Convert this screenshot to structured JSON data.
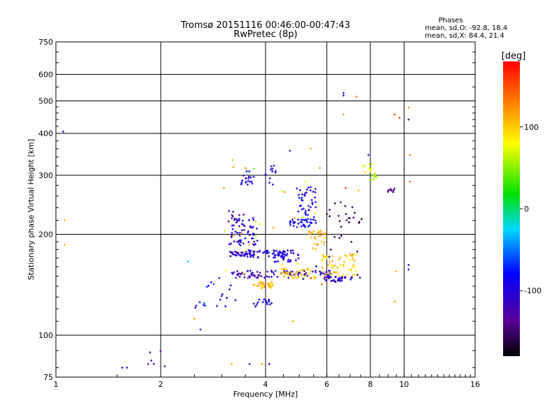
{
  "chart_data": {
    "type": "scatter",
    "title": "Tromsø 20151116 00:46:00-00:47:43",
    "subtitle": "RwPretec (8p)",
    "xlabel": "Frequency [MHz]",
    "ylabel": "Stationary phase Virtual Height [km]",
    "x_scale": "log",
    "y_scale": "log",
    "xlim": [
      1,
      16
    ],
    "ylim": [
      75,
      750
    ],
    "x_ticks": [
      1,
      2,
      4,
      6,
      8,
      10,
      16
    ],
    "x_tick_labels": [
      "1",
      "2",
      "4",
      "6",
      "8",
      "10",
      "16"
    ],
    "y_ticks": [
      75,
      100,
      200,
      300,
      400,
      500,
      600,
      750
    ],
    "y_tick_labels": [
      "75",
      "100",
      "200",
      "300",
      "400",
      "500",
      "600",
      "750"
    ],
    "grid": true,
    "stats": {
      "heading": "Phases",
      "line_o": "mean, sd,O: -92.8, 18.4",
      "line_x": "mean, sd,X:  84.4, 21.4"
    },
    "colorbar": {
      "label": "[deg]",
      "range": [
        -180,
        180
      ],
      "ticks": [
        100,
        0,
        -100
      ],
      "tick_labels": [
        "100",
        "0",
        "-100"
      ]
    },
    "clusters": [
      {
        "f": [
          3.15,
          3.75
        ],
        "h": [
          172,
          178
        ],
        "n": 46,
        "phase": [
          -125,
          -100
        ]
      },
      {
        "f": [
          3.55,
          4.55
        ],
        "h": [
          170,
          180
        ],
        "n": 40,
        "phase": [
          -110,
          -85
        ]
      },
      {
        "f": [
          4.2,
          5.0
        ],
        "h": [
          165,
          180
        ],
        "n": 36,
        "phase": [
          -110,
          -90
        ]
      },
      {
        "f": [
          3.2,
          4.8
        ],
        "h": [
          148,
          156
        ],
        "n": 60,
        "phase": [
          -135,
          -105
        ]
      },
      {
        "f": [
          4.7,
          6.2
        ],
        "h": [
          150,
          156
        ],
        "n": 34,
        "phase": [
          -130,
          -100
        ]
      },
      {
        "f": [
          5.9,
          7.2
        ],
        "h": [
          145,
          150
        ],
        "n": 38,
        "phase": [
          -125,
          -100
        ]
      },
      {
        "f": [
          3.7,
          4.2
        ],
        "h": [
          138,
          145
        ],
        "n": 32,
        "phase": [
          90,
          130
        ]
      },
      {
        "f": [
          4.4,
          5.6
        ],
        "h": [
          148,
          158
        ],
        "n": 38,
        "phase": [
          85,
          125
        ]
      },
      {
        "f": [
          5.8,
          7.3
        ],
        "h": [
          150,
          175
        ],
        "n": 58,
        "phase": [
          75,
          120
        ]
      },
      {
        "f": [
          5.3,
          6.0
        ],
        "h": [
          180,
          205
        ],
        "n": 28,
        "phase": [
          95,
          130
        ]
      },
      {
        "f": [
          3.15,
          3.8
        ],
        "h": [
          185,
          225
        ],
        "n": 55,
        "phase": [
          -115,
          -80
        ]
      },
      {
        "f": [
          4.7,
          5.6
        ],
        "h": [
          210,
          222
        ],
        "n": 36,
        "phase": [
          -100,
          -70
        ]
      },
      {
        "f": [
          4.9,
          5.6
        ],
        "h": [
          225,
          280
        ],
        "n": 40,
        "phase": [
          -110,
          -75
        ]
      },
      {
        "f": [
          3.4,
          3.7
        ],
        "h": [
          280,
          310
        ],
        "n": 20,
        "phase": [
          -110,
          -75
        ]
      },
      {
        "f": [
          4.0,
          4.35
        ],
        "h": [
          280,
          330
        ],
        "n": 12,
        "phase": [
          -120,
          -90
        ]
      },
      {
        "f": [
          3.1,
          3.6
        ],
        "h": [
          190,
          235
        ],
        "n": 14,
        "phase": [
          -150,
          -120
        ]
      },
      {
        "f": [
          3.7,
          4.2
        ],
        "h": [
          120,
          128
        ],
        "n": 16,
        "phase": [
          -110,
          -80
        ]
      },
      {
        "f": [
          6.0,
          7.6
        ],
        "h": [
          210,
          250
        ],
        "n": 20,
        "phase": [
          -170,
          -130
        ]
      },
      {
        "f": [
          7.6,
          8.1
        ],
        "h": [
          305,
          325
        ],
        "n": 12,
        "phase": [
          65,
          95
        ]
      },
      {
        "f": [
          8.0,
          8.4
        ],
        "h": [
          290,
          305
        ],
        "n": 10,
        "phase": [
          40,
          75
        ]
      },
      {
        "f": [
          8.9,
          9.4
        ],
        "h": [
          265,
          275
        ],
        "n": 8,
        "phase": [
          -155,
          -135
        ]
      },
      {
        "f": [
          2.5,
          3.3
        ],
        "h": [
          120,
          150
        ],
        "n": 20,
        "phase": [
          -120,
          -60
        ]
      },
      {
        "f": [
          1.8,
          2.1
        ],
        "h": [
          80,
          92
        ],
        "n": 6,
        "phase": [
          -140,
          -100
        ]
      },
      {
        "f": [
          3.0,
          6.0
        ],
        "h": [
          140,
          360
        ],
        "n": 28,
        "phase": [
          40,
          140
        ]
      },
      {
        "f": [
          5.0,
          7.5
        ],
        "h": [
          140,
          200
        ],
        "n": 14,
        "phase": [
          -180,
          -150
        ]
      }
    ],
    "points": [
      {
        "f": 1.05,
        "h": 405,
        "phase": -120
      },
      {
        "f": 1.06,
        "h": 220,
        "phase": 105
      },
      {
        "f": 1.06,
        "h": 186,
        "phase": 112
      },
      {
        "f": 1.55,
        "h": 80,
        "phase": -110
      },
      {
        "f": 1.6,
        "h": 80,
        "phase": -100
      },
      {
        "f": 2.4,
        "h": 166,
        "phase": -30
      },
      {
        "f": 2.5,
        "h": 112,
        "phase": 115
      },
      {
        "f": 2.6,
        "h": 104,
        "phase": -110
      },
      {
        "f": 3.2,
        "h": 82,
        "phase": 110
      },
      {
        "f": 3.6,
        "h": 82,
        "phase": -120
      },
      {
        "f": 3.9,
        "h": 82,
        "phase": 110
      },
      {
        "f": 4.1,
        "h": 82,
        "phase": -105
      },
      {
        "f": 4.8,
        "h": 110,
        "phase": 115
      },
      {
        "f": 4.7,
        "h": 355,
        "phase": -120
      },
      {
        "f": 5.4,
        "h": 360,
        "phase": 110
      },
      {
        "f": 6.7,
        "h": 528,
        "phase": -110
      },
      {
        "f": 6.7,
        "h": 519,
        "phase": -100
      },
      {
        "f": 7.3,
        "h": 515,
        "phase": 140
      },
      {
        "f": 6.7,
        "h": 455,
        "phase": 120
      },
      {
        "f": 7.9,
        "h": 345,
        "phase": -120
      },
      {
        "f": 9.4,
        "h": 455,
        "phase": 160
      },
      {
        "f": 9.7,
        "h": 445,
        "phase": 150
      },
      {
        "f": 10.3,
        "h": 440,
        "phase": -150
      },
      {
        "f": 10.3,
        "h": 478,
        "phase": 120
      },
      {
        "f": 10.4,
        "h": 345,
        "phase": 130
      },
      {
        "f": 10.4,
        "h": 287,
        "phase": 140
      },
      {
        "f": 10.3,
        "h": 162,
        "phase": -110
      },
      {
        "f": 10.3,
        "h": 157,
        "phase": -110
      },
      {
        "f": 9.5,
        "h": 155,
        "phase": 110
      },
      {
        "f": 9.4,
        "h": 126,
        "phase": 120
      },
      {
        "f": 6.8,
        "h": 275,
        "phase": 160
      },
      {
        "f": 7.4,
        "h": 270,
        "phase": 110
      },
      {
        "f": 5.4,
        "h": 148,
        "phase": 160
      }
    ]
  }
}
